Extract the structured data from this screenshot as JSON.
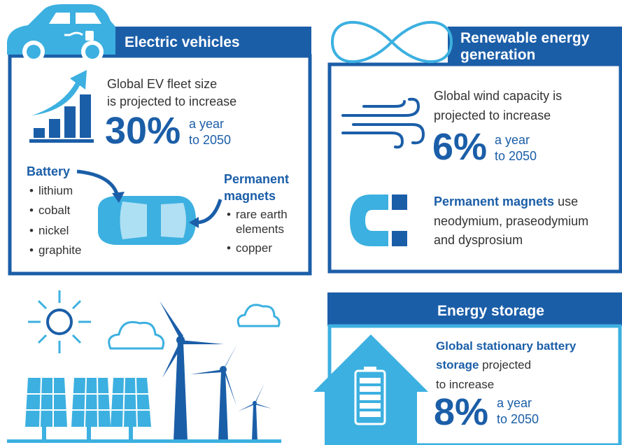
{
  "electric_vehicles": {
    "title": "Electric vehicles",
    "stat": {
      "lines": [
        "Global EV fleet size",
        "is projected to increase"
      ],
      "figure": "30%",
      "unit": [
        "a year",
        "to 2050"
      ]
    },
    "battery": {
      "title": "Battery",
      "items": [
        "lithium",
        "cobalt",
        "nickel",
        "graphite"
      ]
    },
    "magnets": {
      "title": [
        "Permanent",
        "magnets"
      ],
      "items": [
        [
          "rare earth",
          "elements"
        ],
        [
          "copper"
        ]
      ]
    }
  },
  "renewable": {
    "title": [
      "Renewable energy",
      "generation"
    ],
    "wind": {
      "lines": [
        "Global wind capacity is",
        "projected to increase"
      ],
      "figure": "6%",
      "unit": [
        "a year",
        "to 2050"
      ]
    },
    "magnets": {
      "bold": "Permanent magnets",
      "lines": [
        "use",
        "neodymium, praseodymium",
        "and dysprosium"
      ]
    }
  },
  "storage": {
    "title": "Energy storage",
    "bold_lines": [
      "Global stationary battery",
      "storage"
    ],
    "lines": [
      "projected",
      "to increase"
    ],
    "figure": "8%",
    "unit": [
      "a year",
      "to 2050"
    ]
  }
}
